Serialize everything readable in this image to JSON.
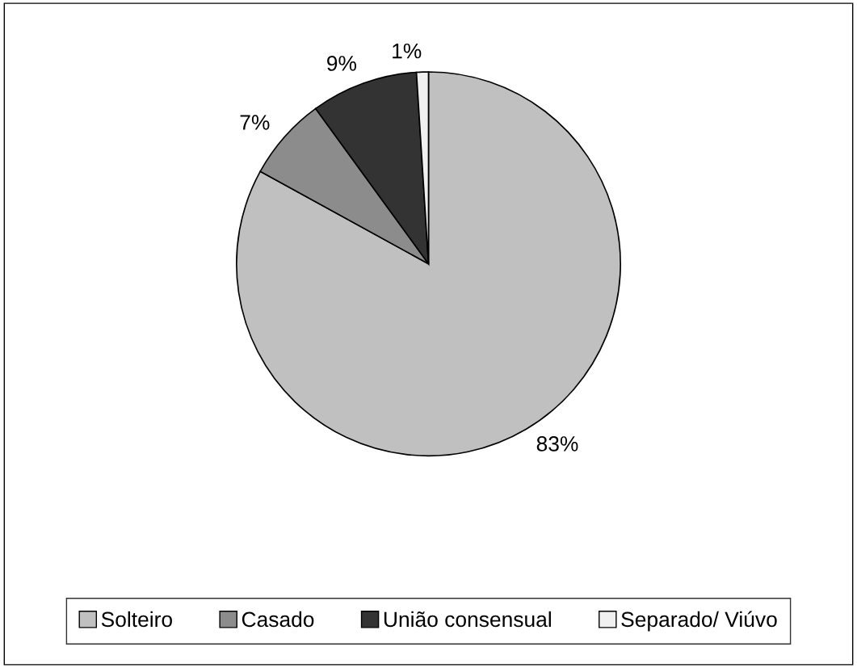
{
  "chart_data": {
    "type": "pie",
    "categories": [
      "Solteiro",
      "Casado",
      "União consensual",
      "Separado/ Viúvo"
    ],
    "values": [
      83,
      7,
      9,
      1
    ],
    "value_labels": [
      "83%",
      "7%",
      "9%",
      "1%"
    ],
    "colors": [
      "#c0c0c0",
      "#8c8c8c",
      "#333333",
      "#f0f0f0"
    ],
    "legend": "bottom"
  }
}
